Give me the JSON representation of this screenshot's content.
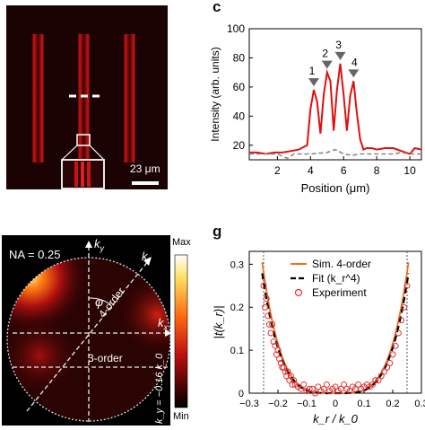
{
  "panels": {
    "b": {
      "scale_bar_label": "23 μm"
    },
    "c": {
      "label": "c",
      "peaks": [
        "1",
        "2",
        "3",
        "4"
      ],
      "chart_data": {
        "type": "line",
        "xlabel": "Position (μm)",
        "ylabel": "Intensity (arb. units)",
        "xlim": [
          0.3,
          10.7
        ],
        "ylim": [
          10,
          100
        ],
        "xticks": [
          2,
          4,
          6,
          8,
          10
        ],
        "yticks": [
          20,
          40,
          60,
          80,
          100
        ],
        "grid": false,
        "series": [
          {
            "color": "#e01010",
            "style": "solid",
            "x": [
              0.3,
              0.8,
              1.3,
              1.8,
              2.3,
              2.8,
              3.3,
              3.8,
              4.0,
              4.2,
              4.4,
              4.6,
              4.8,
              5.0,
              5.2,
              5.4,
              5.6,
              5.8,
              6.0,
              6.2,
              6.4,
              6.6,
              6.8,
              7.0,
              7.2,
              7.4,
              7.7,
              8.0,
              8.5,
              9.0,
              9.5,
              10.0,
              10.3,
              10.7
            ],
            "y": [
              15,
              15,
              14,
              15,
              15,
              16,
              17,
              20,
              45,
              58,
              50,
              28,
              55,
              70,
              64,
              30,
              58,
              76,
              55,
              30,
              54,
              64,
              42,
              24,
              17,
              18,
              18,
              17,
              18,
              18,
              16,
              14,
              18,
              17
            ]
          },
          {
            "color": "#888888",
            "style": "dashed",
            "x": [
              0.3,
              1.0,
              2.0,
              2.6,
              3.0,
              4.0,
              5.0,
              5.5,
              6.0,
              6.5,
              7.0,
              7.5,
              8.0,
              8.5,
              9.0,
              9.5,
              10.0,
              10.7
            ],
            "y": [
              14,
              14,
              14,
              11,
              14,
              14,
              15,
              17,
              14,
              13,
              14,
              14,
              14,
              14,
              14,
              15,
              14,
              14
            ]
          }
        ]
      }
    },
    "f": {
      "na_label": "NA = 0.25",
      "order4_label": "4-order",
      "order3_label": "3-order",
      "ky_label": "k",
      "ky_sub": "y",
      "kx_label": "k",
      "kx_sub": "x",
      "kr_label": "k",
      "kr_sub": "r",
      "phi_label": "φ",
      "ky_value_label": "k_y = −0.16 k_0",
      "colorbar_max": "Max",
      "colorbar_min": "Min"
    },
    "g": {
      "label": "g",
      "legend": [
        "Sim. 4-order",
        "Fit (k_r^4)",
        "Experiment"
      ],
      "chart_data": {
        "type": "scatter",
        "xlabel": "k_r / k_0",
        "ylabel": "|t(k_r)|",
        "xlim": [
          -0.3,
          0.3
        ],
        "ylim": [
          0,
          0.33
        ],
        "xticks": [
          -0.3,
          -0.2,
          -0.1,
          0,
          0.1,
          0.2,
          0.3
        ],
        "yticks": [
          0,
          0.1,
          0.2,
          0.3
        ],
        "grid": false,
        "na_cutoff": [
          -0.25,
          0.25
        ],
        "series": [
          {
            "name": "Sim. 4-order",
            "color": "#f07020",
            "style": "solid",
            "kind": "curve",
            "coef": 72
          },
          {
            "name": "Fit (k_r^4)",
            "color": "#000000",
            "style": "dashed",
            "kind": "curve",
            "coef": 66
          },
          {
            "name": "Experiment",
            "color": "#e03030",
            "kind": "points",
            "x": [
              -0.25,
              -0.245,
              -0.24,
              -0.235,
              -0.23,
              -0.225,
              -0.22,
              -0.215,
              -0.21,
              -0.205,
              -0.2,
              -0.195,
              -0.19,
              -0.185,
              -0.18,
              -0.175,
              -0.17,
              -0.165,
              -0.16,
              -0.155,
              -0.15,
              -0.145,
              -0.14,
              -0.13,
              -0.12,
              -0.11,
              -0.1,
              -0.09,
              -0.08,
              -0.07,
              -0.06,
              -0.05,
              -0.04,
              -0.03,
              -0.02,
              -0.01,
              0,
              0.01,
              0.02,
              0.03,
              0.04,
              0.05,
              0.06,
              0.07,
              0.08,
              0.09,
              0.1,
              0.11,
              0.12,
              0.13,
              0.14,
              0.15,
              0.16,
              0.17,
              0.18,
              0.19,
              0.2,
              0.21,
              0.22,
              0.23,
              0.24,
              0.25
            ],
            "y": [
              0.25,
              0.2,
              0.22,
              0.18,
              0.16,
              0.14,
              0.16,
              0.12,
              0.11,
              0.09,
              0.1,
              0.08,
              0.07,
              0.06,
              0.06,
              0.05,
              0.04,
              0.05,
              0.03,
              0.04,
              0.02,
              0.03,
              0.02,
              0.015,
              0.01,
              0.02,
              0.005,
              0.01,
              0.01,
              0.0,
              0.015,
              0.005,
              0.01,
              0.02,
              0.005,
              0.01,
              0.015,
              0.005,
              0.01,
              0.02,
              0.01,
              0.005,
              0.015,
              0.01,
              0.02,
              0.01,
              0.015,
              0.02,
              0.015,
              0.02,
              0.03,
              0.03,
              0.04,
              0.05,
              0.06,
              0.07,
              0.09,
              0.11,
              0.14,
              0.17,
              0.2,
              0.25
            ]
          }
        ]
      }
    }
  }
}
